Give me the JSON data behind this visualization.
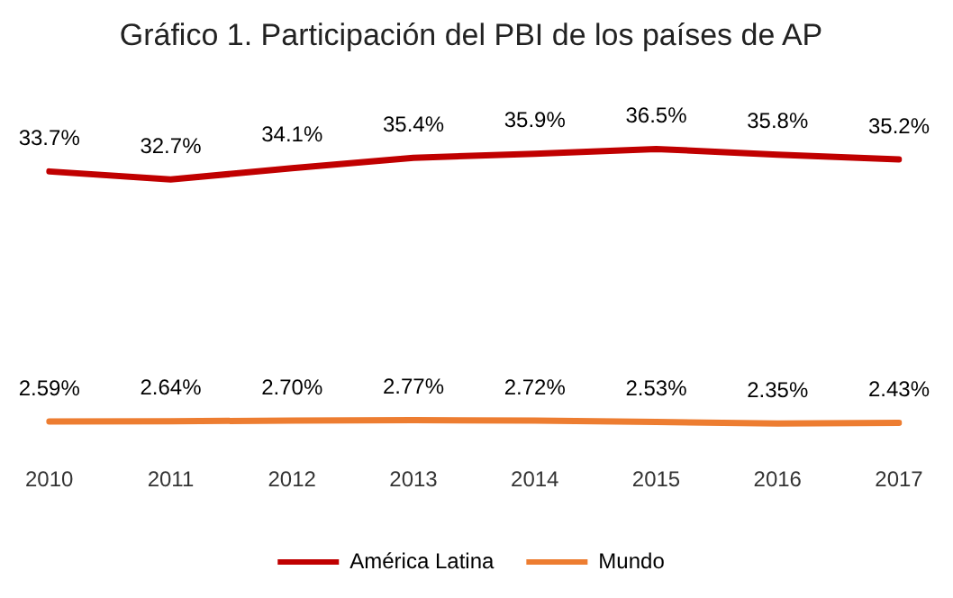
{
  "chart_data": {
    "type": "line",
    "title": "Gráfico 1. Participación del PBI de los países de AP",
    "categories": [
      "2010",
      "2011",
      "2012",
      "2013",
      "2014",
      "2015",
      "2016",
      "2017"
    ],
    "series": [
      {
        "name": "América Latina",
        "color": "#c00000",
        "values": [
          33.7,
          32.7,
          34.1,
          35.4,
          35.9,
          36.5,
          35.8,
          35.2
        ],
        "value_labels": [
          "33.7%",
          "32.7%",
          "34.1%",
          "35.4%",
          "35.9%",
          "36.5%",
          "35.8%",
          "35.2%"
        ]
      },
      {
        "name": "Mundo",
        "color": "#ed7d31",
        "values": [
          2.59,
          2.64,
          2.7,
          2.77,
          2.72,
          2.53,
          2.35,
          2.43
        ],
        "value_labels": [
          "2.59%",
          "2.64%",
          "2.70%",
          "2.77%",
          "2.72%",
          "2.53%",
          "2.35%",
          "2.43%"
        ]
      }
    ],
    "legend": "bottom",
    "grid": false,
    "marker": "none",
    "line_style": "solid"
  }
}
